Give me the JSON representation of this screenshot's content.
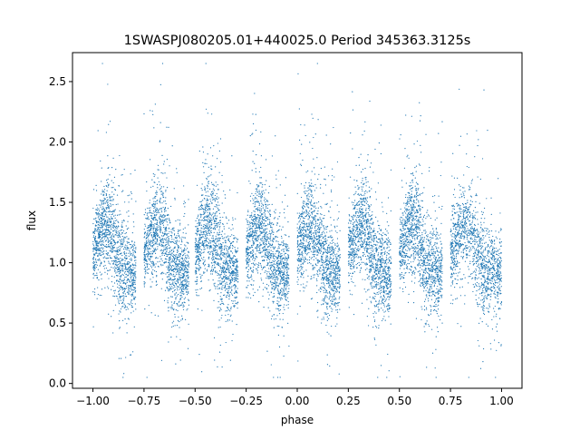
{
  "chart_data": {
    "type": "scatter",
    "title": "1SWASPJ080205.01+440025.0 Period 345363.3125s",
    "xlabel": "phase",
    "ylabel": "flux",
    "xlim": [
      -1.1,
      1.1
    ],
    "ylim": [
      -0.04,
      2.74
    ],
    "xticks": [
      -1.0,
      -0.75,
      -0.5,
      -0.25,
      0.0,
      0.25,
      0.5,
      0.75,
      1.0
    ],
    "xtick_labels": [
      "−1.00",
      "−0.75",
      "−0.50",
      "−0.25",
      "0.00",
      "0.25",
      "0.50",
      "0.75",
      "1.00"
    ],
    "yticks": [
      0.0,
      0.5,
      1.0,
      1.5,
      2.0,
      2.5
    ],
    "ytick_labels": [
      "0.0",
      "0.5",
      "1.0",
      "1.5",
      "2.0",
      "2.5"
    ],
    "grid": false,
    "marker_color": "#1f77b4",
    "x_data_range": [
      -1.0,
      1.0
    ],
    "y_core_range": [
      0.8,
      1.6
    ],
    "y_scatter_range": [
      0.05,
      2.65
    ],
    "observation_segments": [
      [
        -1.0,
        -0.79
      ],
      [
        -0.75,
        -0.53
      ],
      [
        -0.5,
        -0.29
      ],
      [
        -0.25,
        -0.04
      ],
      [
        0.0,
        0.21
      ],
      [
        0.25,
        0.46
      ],
      [
        0.5,
        0.71
      ],
      [
        0.75,
        1.0
      ]
    ]
  }
}
